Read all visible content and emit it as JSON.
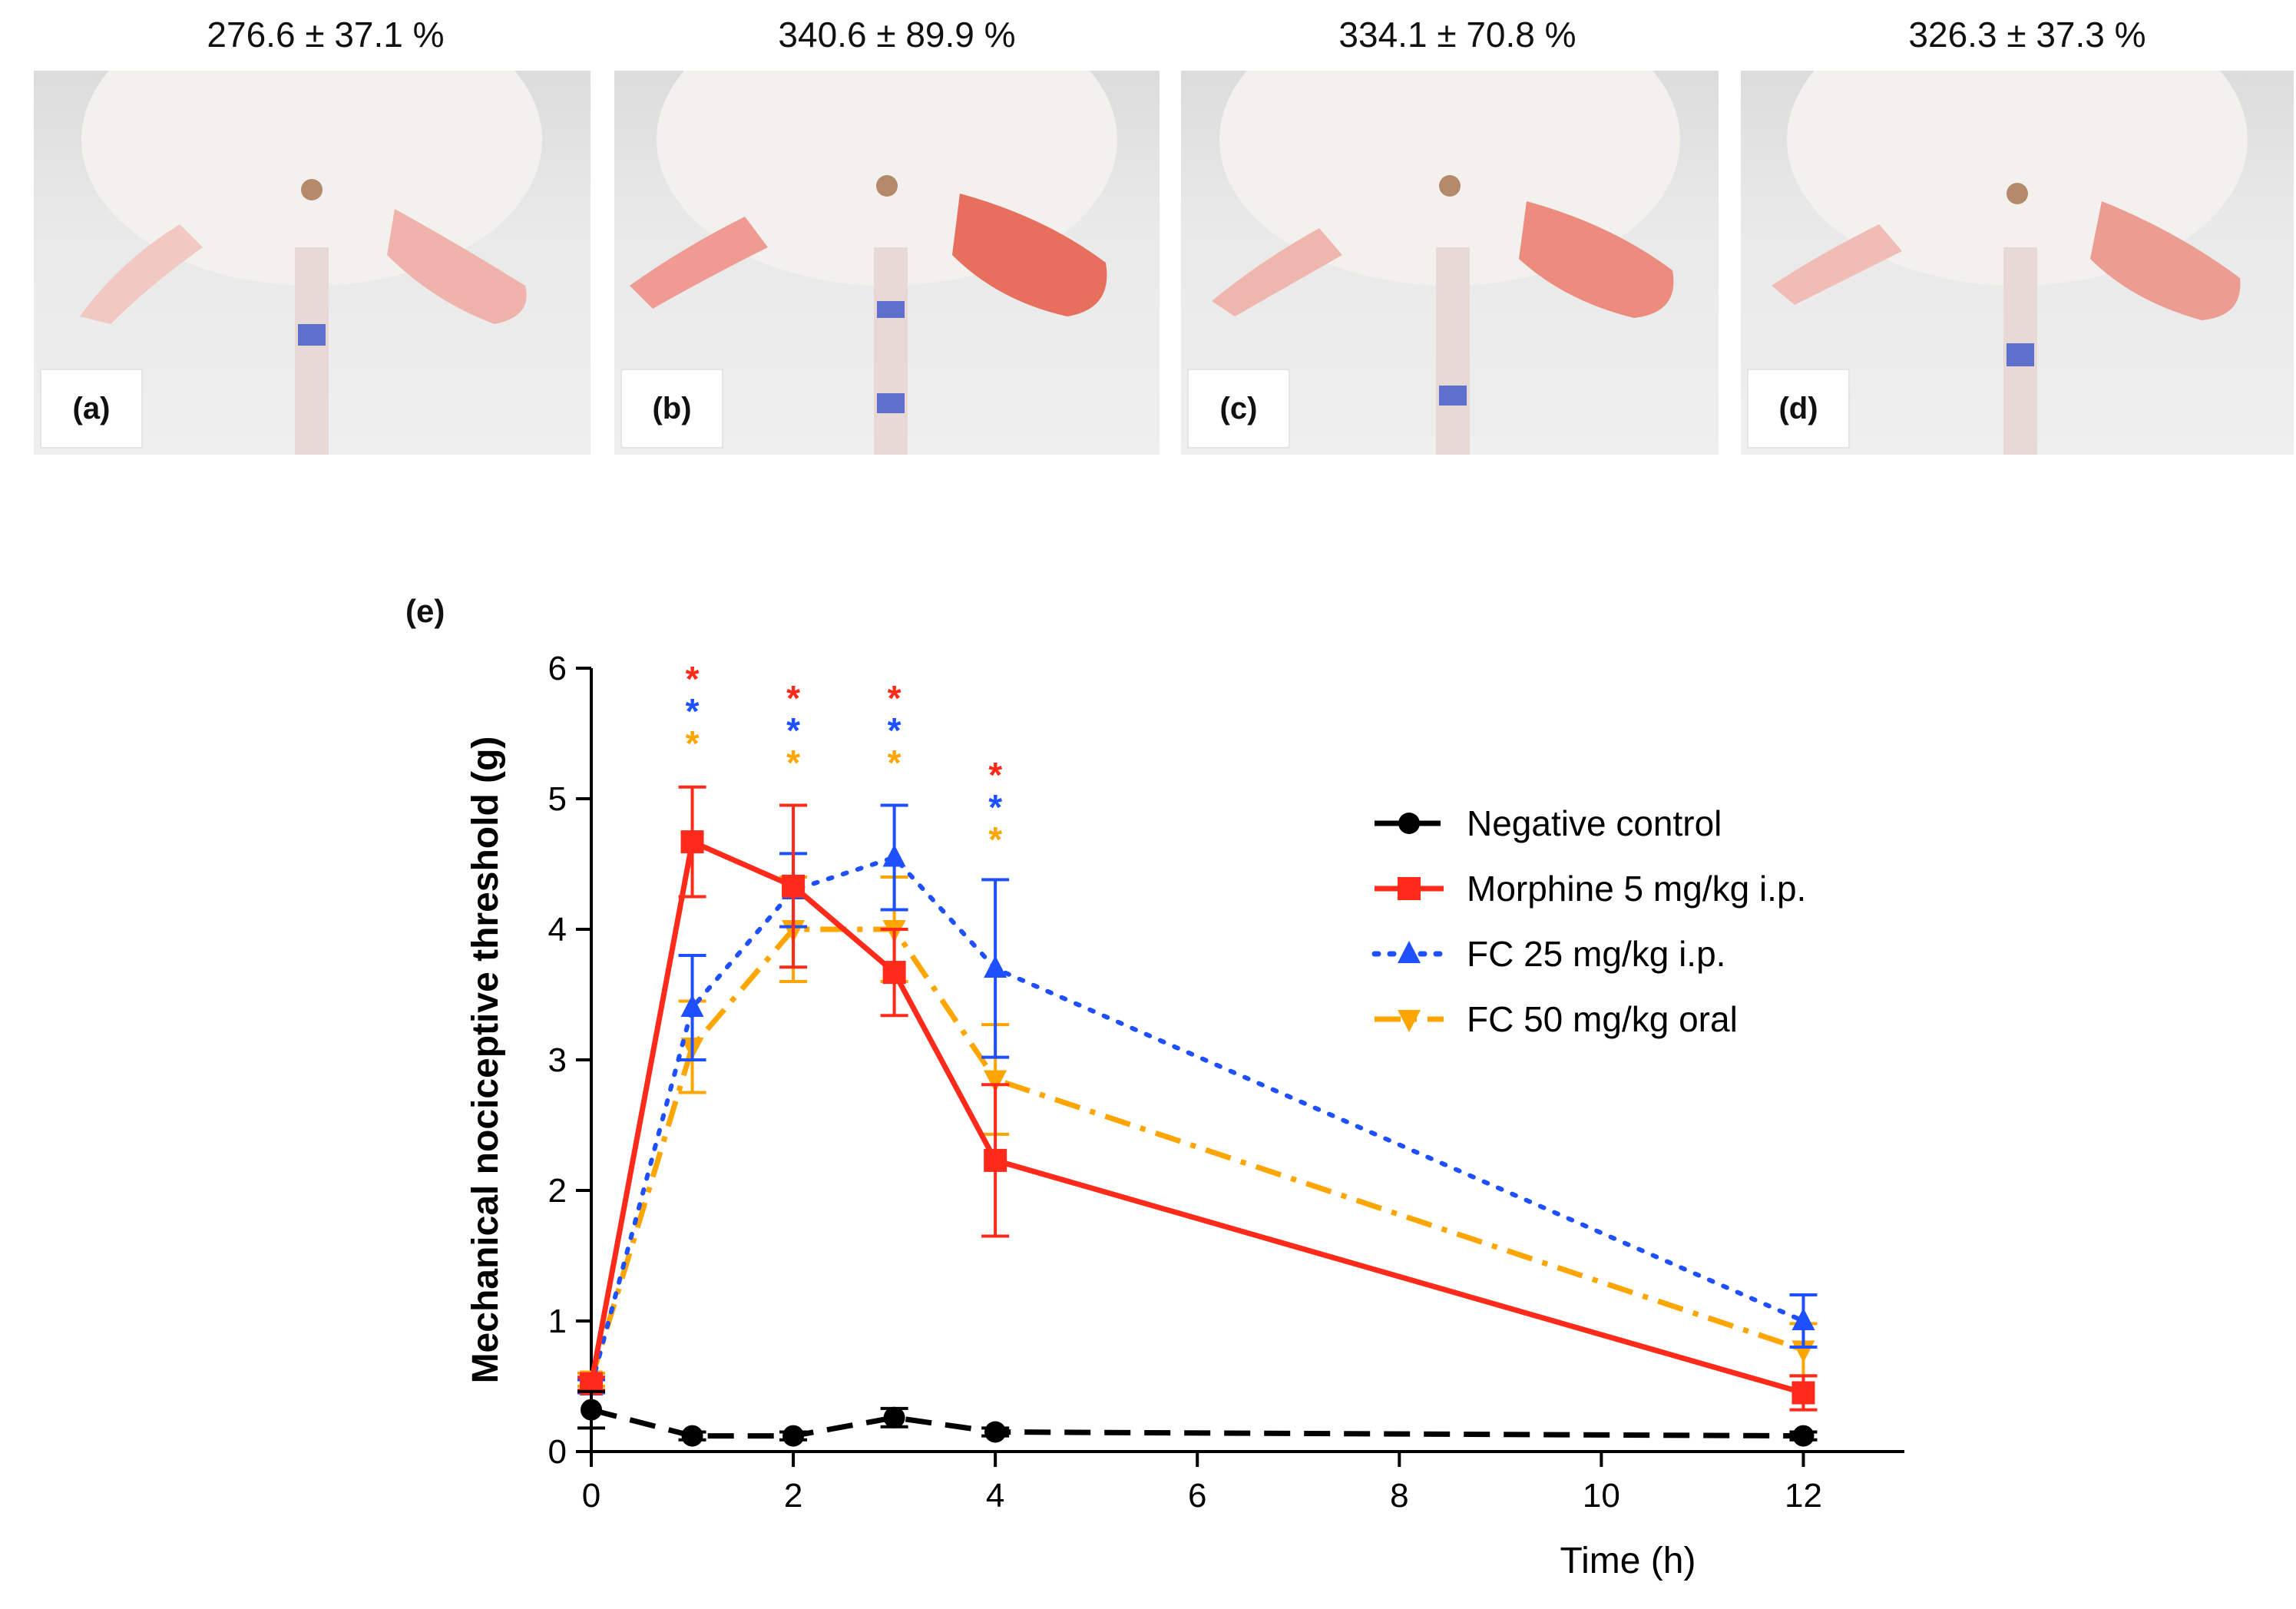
{
  "photos": [
    {
      "label": "(a)",
      "value": "276.6 ±  37.1 %"
    },
    {
      "label": "(b)",
      "value": "340.6 ±  89.9 %"
    },
    {
      "label": "(c)",
      "value": "334.1 ±  70.8 %"
    },
    {
      "label": "(d)",
      "value": "326.3 ±  37.3 %"
    }
  ],
  "panel_e_label": "(e)",
  "chart_data": {
    "type": "line",
    "title": "",
    "xlabel": "Time (h)",
    "ylabel": "Mechanical nociceptive threshold (g)",
    "xlim": [
      0,
      13
    ],
    "ylim": [
      0,
      6
    ],
    "xticks": [
      0,
      2,
      4,
      6,
      8,
      10,
      12
    ],
    "yticks": [
      0,
      1,
      2,
      3,
      4,
      5,
      6
    ],
    "x": [
      0,
      1,
      2,
      3,
      4,
      12
    ],
    "series": [
      {
        "name": "Negative control",
        "color": "#000000",
        "marker": "circle",
        "dash": "dashed",
        "values": [
          0.32,
          0.12,
          0.12,
          0.26,
          0.15,
          0.12
        ],
        "errors": [
          0.14,
          0.03,
          0.03,
          0.07,
          0.03,
          0.03
        ]
      },
      {
        "name": "Morphine 5 mg/kg i.p.",
        "color": "#ff2a1a",
        "marker": "square",
        "dash": "solid",
        "values": [
          0.52,
          4.67,
          4.33,
          3.67,
          2.23,
          0.45
        ],
        "errors": [
          0.05,
          0.42,
          0.62,
          0.33,
          0.58,
          0.13
        ]
      },
      {
        "name": "FC 25 mg/kg i.p.",
        "color": "#1e50ff",
        "marker": "triangle-up",
        "dash": "dotted",
        "values": [
          0.5,
          3.4,
          4.3,
          4.55,
          3.7,
          1.0
        ],
        "errors": [
          0.05,
          0.4,
          0.28,
          0.4,
          0.68,
          0.2
        ]
      },
      {
        "name": "FC 50 mg/kg oral",
        "color": "#ffa500",
        "marker": "triangle-down",
        "dash": "dashdot",
        "values": [
          0.55,
          3.1,
          4.0,
          4.0,
          2.85,
          0.78
        ],
        "errors": [
          0.05,
          0.35,
          0.4,
          0.4,
          0.42,
          0.2
        ]
      }
    ],
    "significance": [
      {
        "x": 1,
        "colors": [
          "#ff2a1a",
          "#1e50ff",
          "#ffa500"
        ]
      },
      {
        "x": 2,
        "colors": [
          "#ff2a1a",
          "#1e50ff",
          "#ffa500"
        ]
      },
      {
        "x": 3,
        "colors": [
          "#ff2a1a",
          "#1e50ff",
          "#ffa500"
        ]
      },
      {
        "x": 4,
        "colors": [
          "#ff2a1a",
          "#1e50ff",
          "#ffa500"
        ]
      }
    ],
    "significance_symbol": "*",
    "legend_position": "right"
  }
}
